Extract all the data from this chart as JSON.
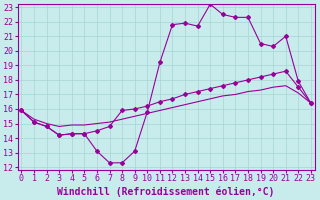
{
  "xlabel": "Windchill (Refroidissement éolien,°C)",
  "bg_color": "#c8ecec",
  "grid_color": "#a8d4d4",
  "line_color": "#990099",
  "xmin": 0,
  "xmax": 23,
  "ymin": 12,
  "ymax": 23,
  "yticks": [
    12,
    13,
    14,
    15,
    16,
    17,
    18,
    19,
    20,
    21,
    22,
    23
  ],
  "xticks": [
    0,
    1,
    2,
    3,
    4,
    5,
    6,
    7,
    8,
    9,
    10,
    11,
    12,
    13,
    14,
    15,
    16,
    17,
    18,
    19,
    20,
    21,
    22,
    23
  ],
  "line1_x": [
    0,
    1,
    2,
    3,
    4,
    5,
    6,
    7,
    8,
    9,
    10,
    11,
    12,
    13,
    14,
    15,
    16,
    17,
    18,
    19,
    20,
    21,
    22,
    23
  ],
  "line1_y": [
    15.9,
    15.1,
    14.8,
    14.2,
    14.3,
    14.3,
    13.1,
    12.3,
    12.3,
    13.1,
    15.8,
    19.2,
    21.8,
    21.9,
    21.7,
    23.2,
    22.5,
    22.3,
    22.3,
    20.5,
    20.3,
    21.0,
    17.9,
    16.4
  ],
  "line2_x": [
    0,
    1,
    2,
    3,
    4,
    5,
    6,
    7,
    8,
    9,
    10,
    11,
    12,
    13,
    14,
    15,
    16,
    17,
    18,
    19,
    20,
    21,
    22,
    23
  ],
  "line2_y": [
    15.9,
    15.1,
    14.8,
    14.2,
    14.3,
    14.3,
    14.5,
    14.8,
    15.9,
    16.0,
    16.2,
    16.5,
    16.7,
    17.0,
    17.2,
    17.4,
    17.6,
    17.8,
    18.0,
    18.2,
    18.4,
    18.6,
    17.5,
    16.4
  ],
  "line3_x": [
    0,
    1,
    2,
    3,
    4,
    5,
    6,
    7,
    8,
    9,
    10,
    11,
    12,
    13,
    14,
    15,
    16,
    17,
    18,
    19,
    20,
    21,
    22,
    23
  ],
  "line3_y": [
    15.9,
    15.3,
    15.0,
    14.8,
    14.9,
    14.9,
    15.0,
    15.1,
    15.3,
    15.5,
    15.7,
    15.9,
    16.1,
    16.3,
    16.5,
    16.7,
    16.9,
    17.0,
    17.2,
    17.3,
    17.5,
    17.6,
    17.1,
    16.4
  ],
  "font_size_label": 7,
  "font_size_tick": 6,
  "marker": "D",
  "marker_size": 2.0,
  "line_width": 0.8
}
